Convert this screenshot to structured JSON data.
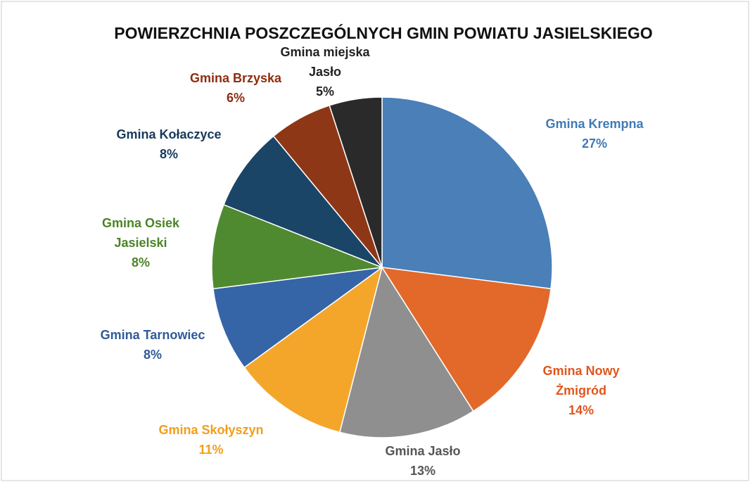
{
  "chart_data": {
    "type": "pie",
    "title": "POWIERZCHNIA POSZCZEGÓLNYCH GMIN POWIATU JASIELSKIEGO",
    "categories": [
      "Gmina Krempna",
      "Gmina Nowy Żmigród",
      "Gmina Jasło",
      "Gmina Skołyszyn",
      "Gmina Tarnowiec",
      "Gmina Osiek Jasielski",
      "Gmina Kołaczyce",
      "Gmina Brzyska",
      "Gmina miejska Jasło"
    ],
    "values": [
      27,
      14,
      13,
      11,
      8,
      8,
      8,
      6,
      5
    ],
    "value_labels": [
      "27%",
      "14%",
      "13%",
      "11%",
      "8%",
      "8%",
      "8%",
      "6%",
      "5%"
    ],
    "colors": [
      "#4a7fb8",
      "#e2692a",
      "#8f8f8f",
      "#f4a62a",
      "#3565a6",
      "#4f8a30",
      "#1b4566",
      "#8e3716",
      "#2a2a2a"
    ],
    "label_colors": [
      "#3f7bb6",
      "#e0561e",
      "#555555",
      "#f29e1a",
      "#2f5a98",
      "#4a8426",
      "#173a5a",
      "#8e2c10",
      "#222222"
    ]
  }
}
